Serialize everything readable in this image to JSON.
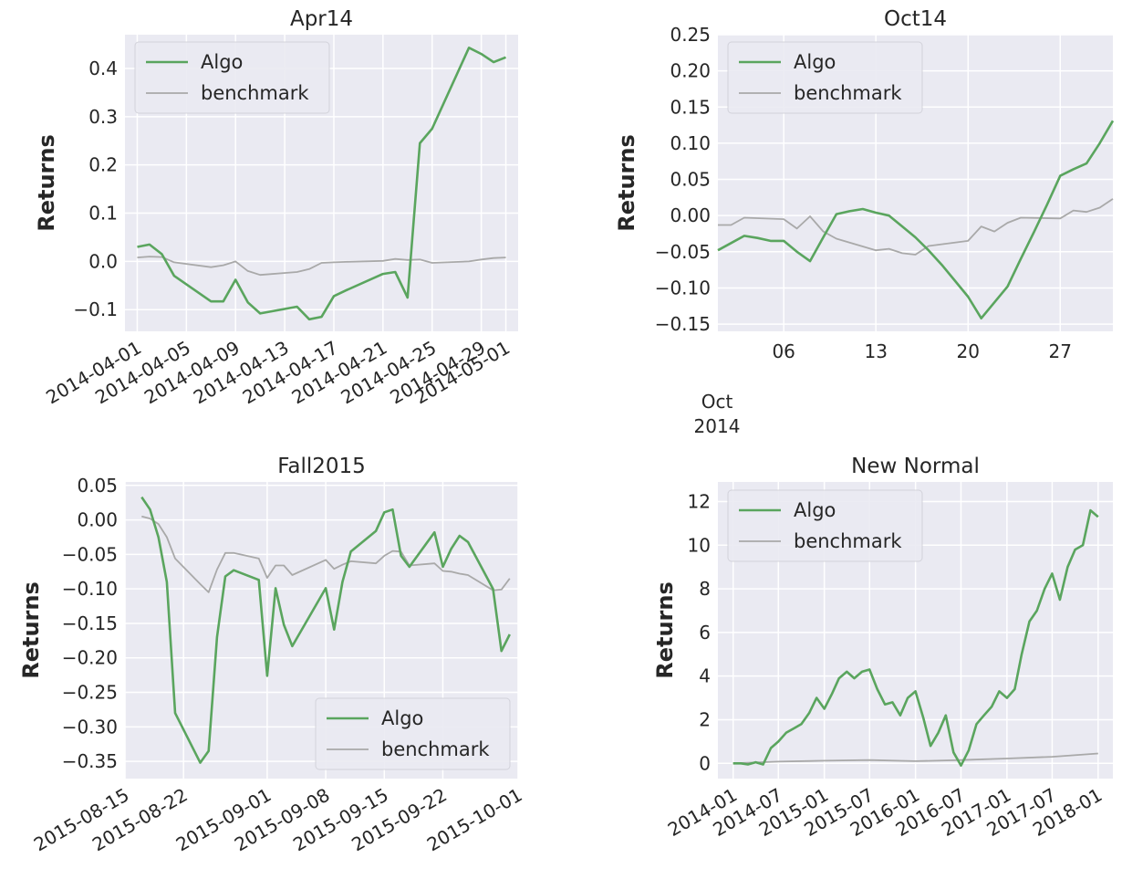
{
  "colors": {
    "algo": "#5aa55e",
    "benchmark": "#a9a9a9",
    "panel": "#eaeaf2",
    "grid": "#ffffff"
  },
  "chart_data": [
    {
      "type": "line",
      "title": "Apr14",
      "ylabel": "Returns",
      "ylim": [
        -0.145,
        0.47
      ],
      "yticks": [
        -0.1,
        0.0,
        0.1,
        0.2,
        0.3,
        0.4
      ],
      "ytick_labels": [
        "−0.1",
        "0.0",
        "0.1",
        "0.2",
        "0.3",
        "0.4"
      ],
      "xlim": [
        "2014-03-31",
        "2014-05-02"
      ],
      "xticks": [
        "2014-04-01",
        "2014-04-05",
        "2014-04-09",
        "2014-04-13",
        "2014-04-17",
        "2014-04-21",
        "2014-04-25",
        "2014-04-29",
        "2014-05-01"
      ],
      "xtick_labels": [
        "2014-04-01",
        "2014-04-05",
        "2014-04-09",
        "2014-04-13",
        "2014-04-17",
        "2014-04-21",
        "2014-04-25",
        "2014-04-29",
        "2014-05-01"
      ],
      "legend": "top-left",
      "series": [
        {
          "name": "Algo",
          "x": [
            "2014-04-01",
            "2014-04-02",
            "2014-04-03",
            "2014-04-04",
            "2014-04-07",
            "2014-04-08",
            "2014-04-09",
            "2014-04-10",
            "2014-04-11",
            "2014-04-14",
            "2014-04-15",
            "2014-04-16",
            "2014-04-17",
            "2014-04-18",
            "2014-04-21",
            "2014-04-22",
            "2014-04-23",
            "2014-04-24",
            "2014-04-25",
            "2014-04-28",
            "2014-04-29",
            "2014-04-30",
            "2014-05-01"
          ],
          "values": [
            0.03,
            0.035,
            0.015,
            -0.03,
            -0.083,
            -0.083,
            -0.038,
            -0.085,
            -0.108,
            -0.094,
            -0.12,
            -0.115,
            -0.072,
            -0.06,
            -0.026,
            -0.022,
            -0.075,
            0.245,
            0.275,
            0.443,
            0.43,
            0.413,
            0.423
          ]
        },
        {
          "name": "benchmark",
          "x": [
            "2014-04-01",
            "2014-04-02",
            "2014-04-03",
            "2014-04-04",
            "2014-04-07",
            "2014-04-08",
            "2014-04-09",
            "2014-04-10",
            "2014-04-11",
            "2014-04-14",
            "2014-04-15",
            "2014-04-16",
            "2014-04-17",
            "2014-04-18",
            "2014-04-21",
            "2014-04-22",
            "2014-04-23",
            "2014-04-24",
            "2014-04-25",
            "2014-04-28",
            "2014-04-29",
            "2014-04-30",
            "2014-05-01"
          ],
          "values": [
            0.008,
            0.01,
            0.009,
            -0.002,
            -0.012,
            -0.008,
            0.0,
            -0.02,
            -0.028,
            -0.022,
            -0.016,
            -0.003,
            -0.002,
            -0.001,
            0.001,
            0.005,
            0.003,
            0.004,
            -0.003,
            0.0,
            0.004,
            0.007,
            0.008
          ]
        }
      ]
    },
    {
      "type": "line",
      "title": "Oct14",
      "ylabel": "Returns",
      "ylim": [
        -0.16,
        0.25
      ],
      "yticks": [
        -0.15,
        -0.1,
        -0.05,
        0.0,
        0.05,
        0.1,
        0.15,
        0.2,
        0.25
      ],
      "ytick_labels": [
        "−0.15",
        "−0.10",
        "−0.05",
        "0.00",
        "0.05",
        "0.10",
        "0.15",
        "0.20",
        "0.25"
      ],
      "xlim": [
        "2014-10-01",
        "2014-10-31"
      ],
      "xticks": [
        "2014-10-06",
        "2014-10-13",
        "2014-10-20",
        "2014-10-27"
      ],
      "xtick_labels": [
        "06",
        "13",
        "20",
        "27"
      ],
      "x_offset_label_1": "Oct",
      "x_offset_label_2": "2014",
      "legend": "top-left",
      "series": [
        {
          "name": "Algo",
          "x": [
            "2014-10-01",
            "2014-10-02",
            "2014-10-03",
            "2014-10-04",
            "2014-10-05",
            "2014-10-06",
            "2014-10-07",
            "2014-10-08",
            "2014-10-09",
            "2014-10-10",
            "2014-10-11",
            "2014-10-12",
            "2014-10-13",
            "2014-10-14",
            "2014-10-15",
            "2014-10-16",
            "2014-10-17",
            "2014-10-18",
            "2014-10-19",
            "2014-10-20",
            "2014-10-21",
            "2014-10-22",
            "2014-10-23",
            "2014-10-24",
            "2014-10-25",
            "2014-10-26",
            "2014-10-27",
            "2014-10-28",
            "2014-10-29",
            "2014-10-30",
            "2014-10-31"
          ],
          "values": [
            -0.048,
            -0.038,
            -0.028,
            -0.031,
            -0.035,
            -0.035,
            -0.05,
            -0.063,
            -0.03,
            0.002,
            0.006,
            0.009,
            0.004,
            0.0,
            -0.015,
            -0.03,
            -0.048,
            -0.068,
            -0.09,
            -0.112,
            -0.142,
            -0.12,
            -0.098,
            -0.06,
            -0.023,
            0.015,
            0.055,
            0.064,
            0.072,
            0.1,
            0.131
          ]
        },
        {
          "name": "benchmark",
          "x": [
            "2014-10-01",
            "2014-10-02",
            "2014-10-03",
            "2014-10-06",
            "2014-10-07",
            "2014-10-08",
            "2014-10-09",
            "2014-10-10",
            "2014-10-13",
            "2014-10-14",
            "2014-10-15",
            "2014-10-16",
            "2014-10-17",
            "2014-10-20",
            "2014-10-21",
            "2014-10-22",
            "2014-10-23",
            "2014-10-24",
            "2014-10-27",
            "2014-10-28",
            "2014-10-29",
            "2014-10-30",
            "2014-10-31"
          ],
          "values": [
            -0.013,
            -0.013,
            -0.003,
            -0.005,
            -0.018,
            -0.001,
            -0.022,
            -0.032,
            -0.048,
            -0.046,
            -0.052,
            -0.054,
            -0.042,
            -0.035,
            -0.015,
            -0.022,
            -0.01,
            -0.003,
            -0.004,
            0.007,
            0.005,
            0.011,
            0.023
          ]
        }
      ]
    },
    {
      "type": "line",
      "title": "Fall2015",
      "ylabel": "Returns",
      "ylim": [
        -0.375,
        0.055
      ],
      "yticks": [
        -0.35,
        -0.3,
        -0.25,
        -0.2,
        -0.15,
        -0.1,
        -0.05,
        0.0,
        0.05
      ],
      "ytick_labels": [
        "−0.35",
        "−0.30",
        "−0.25",
        "−0.20",
        "−0.15",
        "−0.10",
        "−0.05",
        "0.00",
        "0.05"
      ],
      "xlim": [
        "2015-08-15",
        "2015-10-01"
      ],
      "xticks": [
        "2015-08-15",
        "2015-08-22",
        "2015-09-01",
        "2015-09-08",
        "2015-09-15",
        "2015-09-22",
        "2015-10-01"
      ],
      "xtick_labels": [
        "2015-08-15",
        "2015-08-22",
        "2015-09-01",
        "2015-09-08",
        "2015-09-15",
        "2015-09-22",
        "2015-10-01"
      ],
      "legend": "lower-right",
      "series": [
        {
          "name": "Algo",
          "x": [
            "2015-08-17",
            "2015-08-18",
            "2015-08-19",
            "2015-08-20",
            "2015-08-21",
            "2015-08-24",
            "2015-08-25",
            "2015-08-26",
            "2015-08-27",
            "2015-08-28",
            "2015-08-31",
            "2015-09-01",
            "2015-09-02",
            "2015-09-03",
            "2015-09-04",
            "2015-09-08",
            "2015-09-09",
            "2015-09-10",
            "2015-09-11",
            "2015-09-14",
            "2015-09-15",
            "2015-09-16",
            "2015-09-17",
            "2015-09-18",
            "2015-09-21",
            "2015-09-22",
            "2015-09-23",
            "2015-09-24",
            "2015-09-25",
            "2015-09-28",
            "2015-09-29",
            "2015-09-30"
          ],
          "values": [
            0.033,
            0.015,
            -0.025,
            -0.09,
            -0.28,
            -0.352,
            -0.335,
            -0.17,
            -0.082,
            -0.073,
            -0.087,
            -0.226,
            -0.099,
            -0.152,
            -0.183,
            -0.099,
            -0.159,
            -0.09,
            -0.046,
            -0.016,
            0.011,
            0.015,
            -0.052,
            -0.068,
            -0.018,
            -0.068,
            -0.042,
            -0.023,
            -0.032,
            -0.1,
            -0.19,
            -0.166
          ]
        },
        {
          "name": "benchmark",
          "x": [
            "2015-08-17",
            "2015-08-18",
            "2015-08-19",
            "2015-08-20",
            "2015-08-21",
            "2015-08-24",
            "2015-08-25",
            "2015-08-26",
            "2015-08-27",
            "2015-08-28",
            "2015-08-31",
            "2015-09-01",
            "2015-09-02",
            "2015-09-03",
            "2015-09-04",
            "2015-09-08",
            "2015-09-09",
            "2015-09-10",
            "2015-09-11",
            "2015-09-14",
            "2015-09-15",
            "2015-09-16",
            "2015-09-17",
            "2015-09-18",
            "2015-09-21",
            "2015-09-22",
            "2015-09-23",
            "2015-09-24",
            "2015-09-25",
            "2015-09-28",
            "2015-09-29",
            "2015-09-30"
          ],
          "values": [
            0.005,
            0.002,
            -0.006,
            -0.025,
            -0.056,
            -0.093,
            -0.105,
            -0.072,
            -0.048,
            -0.048,
            -0.056,
            -0.084,
            -0.066,
            -0.066,
            -0.08,
            -0.058,
            -0.071,
            -0.065,
            -0.06,
            -0.063,
            -0.052,
            -0.045,
            -0.046,
            -0.066,
            -0.063,
            -0.074,
            -0.075,
            -0.078,
            -0.08,
            -0.102,
            -0.101,
            -0.085
          ]
        }
      ]
    },
    {
      "type": "line",
      "title": "New Normal",
      "ylabel": "Returns",
      "ylim": [
        -0.7,
        12.9
      ],
      "yticks": [
        0,
        2,
        4,
        6,
        8,
        10,
        12
      ],
      "ytick_labels": [
        "0",
        "2",
        "4",
        "6",
        "8",
        "10",
        "12"
      ],
      "xlim": [
        "2013-11-01",
        "2018-03-01"
      ],
      "xticks": [
        "2014-01-01",
        "2014-07-01",
        "2015-01-01",
        "2015-07-01",
        "2016-01-01",
        "2016-07-01",
        "2017-01-01",
        "2017-07-01",
        "2018-01-01"
      ],
      "xtick_labels": [
        "2014-01",
        "2014-07",
        "2015-01",
        "2015-07",
        "2016-01",
        "2016-07",
        "2017-01",
        "2017-07",
        "2018-01"
      ],
      "legend": "top-left",
      "series": [
        {
          "name": "Algo",
          "x": [
            "2014-01-01",
            "2014-02-01",
            "2014-03-01",
            "2014-04-01",
            "2014-05-01",
            "2014-06-01",
            "2014-07-01",
            "2014-08-01",
            "2014-09-01",
            "2014-10-01",
            "2014-11-01",
            "2014-12-01",
            "2015-01-01",
            "2015-02-01",
            "2015-03-01",
            "2015-04-01",
            "2015-05-01",
            "2015-06-01",
            "2015-07-01",
            "2015-08-01",
            "2015-09-01",
            "2015-10-01",
            "2015-11-01",
            "2015-12-01",
            "2016-01-01",
            "2016-02-01",
            "2016-03-01",
            "2016-04-01",
            "2016-05-01",
            "2016-06-01",
            "2016-07-01",
            "2016-08-01",
            "2016-09-01",
            "2016-10-01",
            "2016-11-01",
            "2016-12-01",
            "2017-01-01",
            "2017-02-01",
            "2017-03-01",
            "2017-04-01",
            "2017-05-01",
            "2017-06-01",
            "2017-07-01",
            "2017-08-01",
            "2017-09-01",
            "2017-10-01",
            "2017-11-01",
            "2017-12-01",
            "2018-01-01"
          ],
          "values": [
            0.0,
            0.0,
            -0.05,
            0.05,
            -0.05,
            0.7,
            1.0,
            1.4,
            1.6,
            1.8,
            2.3,
            3.0,
            2.5,
            3.2,
            3.9,
            4.2,
            3.9,
            4.2,
            4.3,
            3.4,
            2.7,
            2.8,
            2.2,
            3.0,
            3.3,
            2.1,
            0.8,
            1.4,
            2.2,
            0.5,
            -0.1,
            0.6,
            1.8,
            2.2,
            2.6,
            3.3,
            3.0,
            3.4,
            5.0,
            6.5,
            7.0,
            8.0,
            8.7,
            7.5,
            9.0,
            9.8,
            10.0,
            11.6,
            11.3
          ]
        },
        {
          "name": "benchmark",
          "x": [
            "2014-01-01",
            "2014-07-01",
            "2015-01-01",
            "2015-07-01",
            "2016-01-01",
            "2016-07-01",
            "2017-01-01",
            "2017-07-01",
            "2018-01-01"
          ],
          "values": [
            0.0,
            0.08,
            0.12,
            0.15,
            0.1,
            0.15,
            0.22,
            0.3,
            0.45
          ]
        }
      ]
    }
  ]
}
